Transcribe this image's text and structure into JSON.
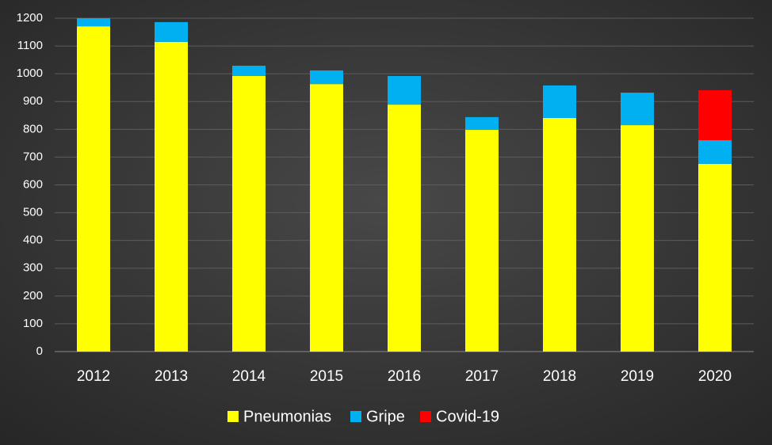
{
  "chart_data": {
    "type": "stacked_bar",
    "categories": [
      "2012",
      "2013",
      "2014",
      "2015",
      "2016",
      "2017",
      "2018",
      "2019",
      "2020"
    ],
    "series": [
      {
        "name": "Pneumonias",
        "color": "#ffff00",
        "values": [
          1171,
          1115,
          992,
          963,
          889,
          798,
          841,
          815,
          676
        ]
      },
      {
        "name": "Gripe",
        "color": "#00b0f0",
        "values": [
          29,
          71,
          37,
          49,
          103,
          46,
          117,
          117,
          85
        ]
      },
      {
        "name": "Covid-19",
        "color": "#ff0000",
        "values": [
          null,
          null,
          null,
          null,
          null,
          null,
          null,
          null,
          180
        ]
      }
    ],
    "ylim": [
      0,
      1200
    ],
    "yticks": [
      0,
      100,
      200,
      300,
      400,
      500,
      600,
      700,
      800,
      900,
      1000,
      1100,
      1200
    ],
    "grid": true,
    "legend": "bottom"
  }
}
